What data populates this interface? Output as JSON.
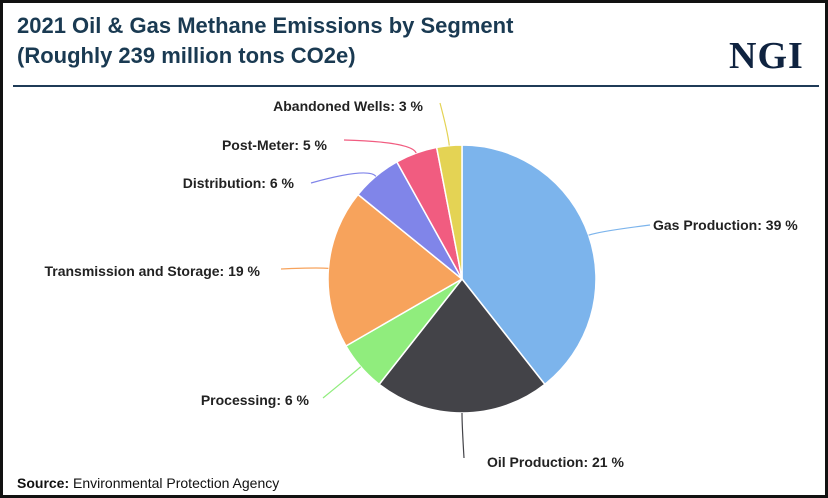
{
  "header": {
    "title_line1": "2021 Oil & Gas Methane Emissions by Segment",
    "title_line2": "(Roughly 239 million tons CO2e)",
    "logo": "NGI"
  },
  "footer": {
    "source_label": "Source:",
    "source_text": "Environmental Protection Agency"
  },
  "chart_data": {
    "type": "pie",
    "title": "2021 Oil & Gas Methane Emissions by Segment",
    "subtitle": "(Roughly 239 million tons CO2e)",
    "unit": "%",
    "slices": [
      {
        "label": "Gas Production",
        "value": 39,
        "display": "Gas Production: 39 %",
        "color": "#7cb4ec"
      },
      {
        "label": "Oil Production",
        "value": 21,
        "display": "Oil Production: 21 %",
        "color": "#434348"
      },
      {
        "label": "Processing",
        "value": 6,
        "display": "Processing: 6 %",
        "color": "#90ed7d"
      },
      {
        "label": "Transmission and Storage",
        "value": 19,
        "display": "Transmission and Storage: 19 %",
        "color": "#f7a35c"
      },
      {
        "label": "Distribution",
        "value": 6,
        "display": "Distribution: 6 %",
        "color": "#8085e9"
      },
      {
        "label": "Post-Meter",
        "value": 5,
        "display": "Post-Meter: 5 %",
        "color": "#f15c80"
      },
      {
        "label": "Abandoned Wells",
        "value": 3,
        "display": "Abandoned Wells: 3 %",
        "color": "#e4d354"
      }
    ]
  }
}
